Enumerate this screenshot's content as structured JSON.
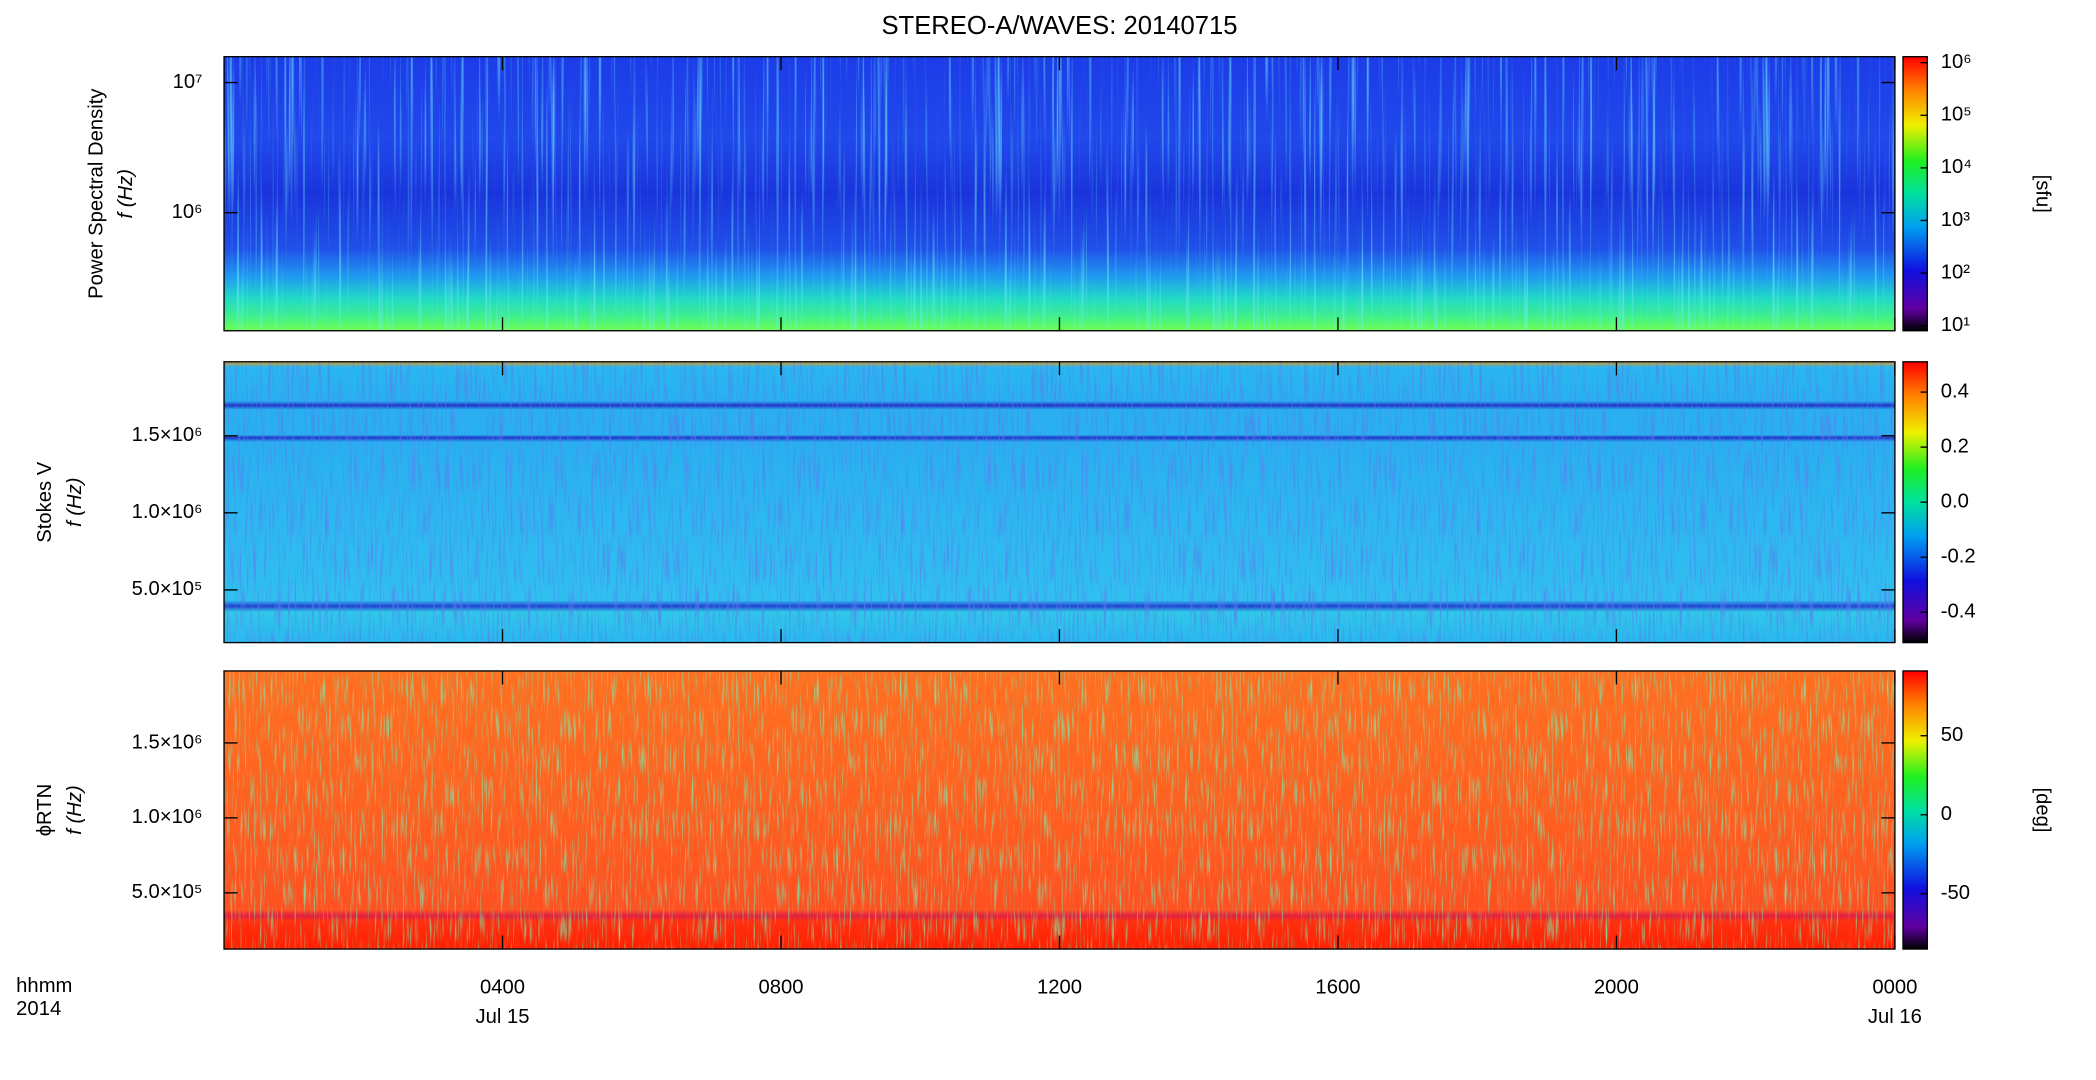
{
  "title": "STEREO-A/WAVES: 20140715",
  "chart_data": [
    {
      "type": "heatmap",
      "ylabel": [
        "Power Spectral Density",
        "f (Hz)"
      ],
      "log_y": true,
      "ylim": [
        124000,
        15800000
      ],
      "yticks": [
        {
          "value": 1000000,
          "label": "10⁶"
        },
        {
          "value": 10000000,
          "label": "10⁷"
        }
      ],
      "colorbar": {
        "log": true,
        "clim": [
          8,
          1300000
        ],
        "label": "[sfu]",
        "ticks": [
          {
            "value": 10,
            "label": "10¹"
          },
          {
            "value": 100,
            "label": "10²"
          },
          {
            "value": 1000,
            "label": "10³"
          },
          {
            "value": 10000,
            "label": "10⁴"
          },
          {
            "value": 100000,
            "label": "10⁵"
          },
          {
            "value": 1000000,
            "label": "10⁶"
          }
        ]
      }
    },
    {
      "type": "heatmap",
      "ylabel": [
        "Stokes V",
        "f (Hz)"
      ],
      "log_y": false,
      "ylim": [
        158000,
        1980000
      ],
      "yticks": [
        {
          "value": 500000,
          "label": "5.0×10⁵"
        },
        {
          "value": 1000000,
          "label": "1.0×10⁶"
        },
        {
          "value": 1500000,
          "label": "1.5×10⁶"
        }
      ],
      "colorbar": {
        "log": false,
        "clim": [
          -0.51,
          0.51
        ],
        "ticks": [
          {
            "value": -0.4,
            "label": "-0.4"
          },
          {
            "value": -0.2,
            "label": "-0.2"
          },
          {
            "value": 0.0,
            "label": "0.0"
          },
          {
            "value": 0.2,
            "label": "0.2"
          },
          {
            "value": 0.4,
            "label": "0.4"
          }
        ]
      }
    },
    {
      "type": "heatmap",
      "ylabel": [
        "ϕRTN",
        "f (Hz)"
      ],
      "log_y": false,
      "ylim": [
        125000,
        1980000
      ],
      "yticks": [
        {
          "value": 500000,
          "label": "5.0×10⁵"
        },
        {
          "value": 1000000,
          "label": "1.0×10⁶"
        },
        {
          "value": 1500000,
          "label": "1.5×10⁶"
        }
      ],
      "colorbar": {
        "log": false,
        "clim": [
          -85,
          91
        ],
        "label": "[deg]",
        "ticks": [
          -50,
          0,
          50
        ]
      }
    }
  ],
  "x_axis": {
    "xlim": [
      0,
      24
    ],
    "xticks": [
      {
        "value": 4,
        "label": "0400"
      },
      {
        "value": 8,
        "label": "0800"
      },
      {
        "value": 12,
        "label": "1200"
      },
      {
        "value": 16,
        "label": "1600"
      },
      {
        "value": 20,
        "label": "2000"
      },
      {
        "value": 24,
        "label": "0000"
      }
    ],
    "date_labels": [
      {
        "value": 4,
        "label": "Jul 15"
      },
      {
        "value": 24,
        "label": "Jul 16"
      }
    ],
    "header_labels": [
      "hhmm",
      "2014"
    ]
  }
}
